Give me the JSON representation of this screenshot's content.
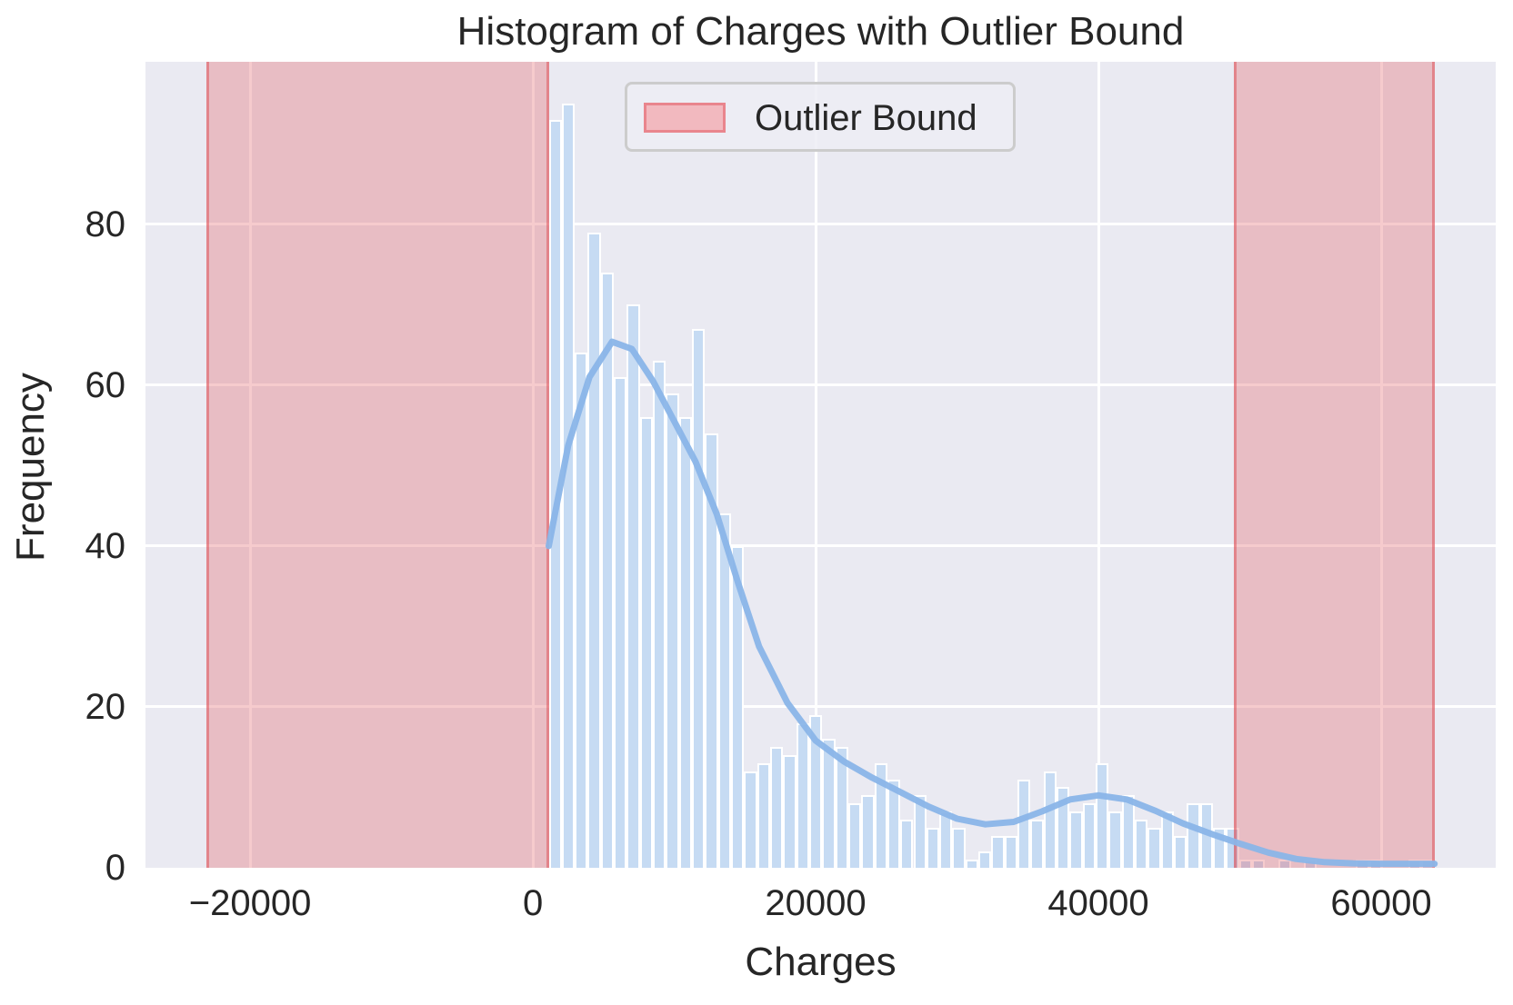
{
  "title": "Histogram of Charges with Outlier Bound",
  "xlabel": "Charges",
  "ylabel": "Frequency",
  "legend": {
    "label": "Outlier Bound"
  },
  "colors": {
    "plot_background": "#eaeaf2",
    "gridline": "#ffffff",
    "bar_fill": "#c6dbf3",
    "bar_edge": "#ffffff",
    "kde_line": "#8ab5e8",
    "outlier_fill": "rgba(228,92,100,0.32)",
    "outlier_edge": "rgba(219,62,72,0.45)",
    "text": "#262626",
    "legend_patch_fill": "#f2b9bf",
    "legend_patch_edge": "#e9858d"
  },
  "chart_data": {
    "type": "bar",
    "subtype": "histogram-with-kde",
    "title": "Histogram of Charges with Outlier Bound",
    "xlabel": "Charges",
    "ylabel": "Frequency",
    "grid": true,
    "legend_position": "upper center",
    "xlim": [
      -27400,
      68100
    ],
    "ylim": [
      0,
      100.2
    ],
    "x_ticks": [
      {
        "label": "−20000",
        "value": -20000
      },
      {
        "label": "0",
        "value": 0
      },
      {
        "label": "20000",
        "value": 20000
      },
      {
        "label": "40000",
        "value": 40000
      },
      {
        "label": "60000",
        "value": 60000
      }
    ],
    "y_ticks": [
      {
        "label": "0",
        "value": 0
      },
      {
        "label": "20",
        "value": 20
      },
      {
        "label": "40",
        "value": 40
      },
      {
        "label": "60",
        "value": 60
      },
      {
        "label": "80",
        "value": 80
      }
    ],
    "bin_start": 1122,
    "bin_width": 921,
    "bar_counts": [
      93,
      95,
      64,
      79,
      74,
      61,
      70,
      56,
      63,
      59,
      56,
      67,
      54,
      44,
      40,
      12,
      13,
      15,
      14,
      18,
      19,
      16,
      15,
      8,
      9,
      13,
      11,
      6,
      9,
      5,
      7,
      5,
      1,
      2,
      4,
      4,
      11,
      6,
      12,
      10,
      7,
      8,
      13,
      7,
      9,
      6,
      5,
      7,
      4,
      8,
      8,
      5,
      5,
      1,
      1,
      0,
      1,
      0,
      1,
      0,
      0,
      0,
      1,
      1,
      0,
      0,
      1,
      1
    ],
    "outlier_spans": [
      {
        "from": -23060,
        "to": 1122
      },
      {
        "from": 49600,
        "to": 63770
      }
    ],
    "kde_points": [
      [
        1122,
        40.0
      ],
      [
        2500,
        52.5
      ],
      [
        4000,
        61.0
      ],
      [
        5600,
        65.4
      ],
      [
        7000,
        64.5
      ],
      [
        8500,
        60.5
      ],
      [
        10000,
        55.5
      ],
      [
        11500,
        50.5
      ],
      [
        13000,
        44.0
      ],
      [
        14500,
        35.5
      ],
      [
        16000,
        27.5
      ],
      [
        18000,
        20.5
      ],
      [
        20000,
        15.8
      ],
      [
        22000,
        13.2
      ],
      [
        24000,
        11.2
      ],
      [
        26000,
        9.4
      ],
      [
        28000,
        7.6
      ],
      [
        30000,
        6.1
      ],
      [
        32000,
        5.4
      ],
      [
        34000,
        5.7
      ],
      [
        36000,
        7.0
      ],
      [
        38000,
        8.5
      ],
      [
        40000,
        9.0
      ],
      [
        42000,
        8.5
      ],
      [
        44000,
        7.1
      ],
      [
        46000,
        5.5
      ],
      [
        48000,
        4.2
      ],
      [
        50000,
        3.0
      ],
      [
        52000,
        1.9
      ],
      [
        54000,
        1.1
      ],
      [
        56000,
        0.7
      ],
      [
        58000,
        0.55
      ],
      [
        60000,
        0.5
      ],
      [
        62000,
        0.5
      ],
      [
        63770,
        0.5
      ]
    ]
  }
}
